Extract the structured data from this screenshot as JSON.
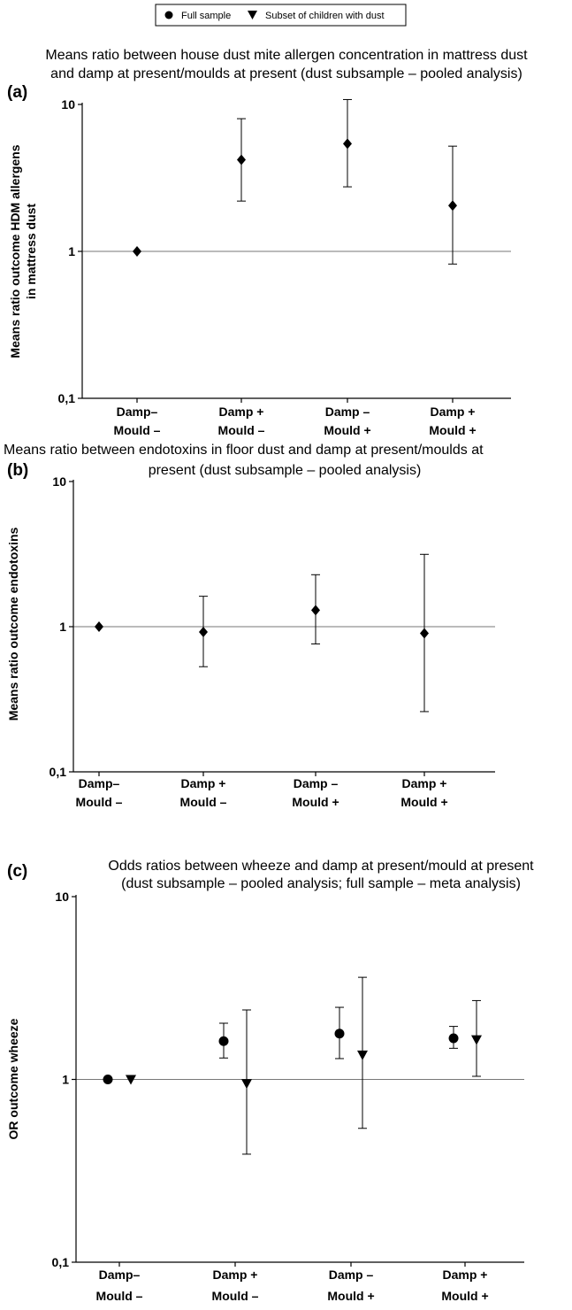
{
  "legend": {
    "items": [
      {
        "label": "Full sample",
        "marker": "circle"
      },
      {
        "label": "Subset of children with dust",
        "marker": "triangle-down"
      }
    ]
  },
  "chart_data": [
    {
      "type": "scatter",
      "panel_label": "(a)",
      "title_lines": [
        "Means ratio between house dust mite allergen concentration in mattress dust",
        "and damp at present/moulds at present (dust subsample – pooled analysis)"
      ],
      "ylabel_lines": [
        "Means ratio outcome HDM allergens",
        "in mattress dust"
      ],
      "y_scale": "log",
      "ylim": [
        0.1,
        10
      ],
      "yticks": [
        {
          "value": 0.1,
          "label": "0,1"
        },
        {
          "value": 1,
          "label": "1"
        },
        {
          "value": 10,
          "label": "10"
        }
      ],
      "reference_line": 1,
      "categories": [
        [
          "Damp–",
          "Mould –"
        ],
        [
          "Damp +",
          "Mould –"
        ],
        [
          "Damp –",
          "Mould +"
        ],
        [
          "Damp +",
          "Mould +"
        ]
      ],
      "series": [
        {
          "marker": "diamond",
          "values": [
            1.0,
            4.2,
            5.4,
            2.05
          ],
          "lower": [
            null,
            2.2,
            2.75,
            0.82
          ],
          "upper": [
            null,
            8.0,
            10.8,
            5.2
          ]
        }
      ]
    },
    {
      "type": "scatter",
      "panel_label": "(b)",
      "title_lines": [
        "Means ratio between endotoxins in floor dust and damp at present/moulds at",
        "present (dust subsample – pooled analysis)"
      ],
      "ylabel_lines": [
        "Means ratio outcome endotoxins"
      ],
      "y_scale": "log",
      "ylim": [
        0.1,
        10
      ],
      "yticks": [
        {
          "value": 0.1,
          "label": "0,1"
        },
        {
          "value": 1,
          "label": "1"
        },
        {
          "value": 10,
          "label": "10"
        }
      ],
      "reference_line": 1,
      "categories": [
        [
          "Damp–",
          "Mould –"
        ],
        [
          "Damp +",
          "Mould –"
        ],
        [
          "Damp –",
          "Mould +"
        ],
        [
          "Damp +",
          "Mould +"
        ]
      ],
      "series": [
        {
          "marker": "diamond",
          "values": [
            1.0,
            0.92,
            1.3,
            0.9
          ],
          "lower": [
            null,
            0.53,
            0.76,
            0.26
          ],
          "upper": [
            null,
            1.62,
            2.28,
            3.15
          ]
        }
      ]
    },
    {
      "type": "scatter",
      "panel_label": "(c)",
      "title_lines": [
        "Odds ratios between wheeze and damp at present/mould at present",
        "(dust subsample – pooled analysis; full sample – meta analysis)"
      ],
      "ylabel_lines": [
        "OR outcome wheeze"
      ],
      "y_scale": "log",
      "ylim": [
        0.1,
        10
      ],
      "yticks": [
        {
          "value": 0.1,
          "label": "0,1"
        },
        {
          "value": 1,
          "label": "1"
        },
        {
          "value": 10,
          "label": "10"
        }
      ],
      "reference_line": 1,
      "categories": [
        [
          "Damp–",
          "Mould –"
        ],
        [
          "Damp +",
          "Mould –"
        ],
        [
          "Damp –",
          "Mould +"
        ],
        [
          "Damp +",
          "Mould +"
        ]
      ],
      "series": [
        {
          "name": "Full sample",
          "marker": "circle",
          "values": [
            1.0,
            1.62,
            1.78,
            1.68
          ],
          "lower": [
            null,
            1.31,
            1.3,
            1.48
          ],
          "upper": [
            null,
            2.03,
            2.48,
            1.95
          ]
        },
        {
          "name": "Subset of children with dust",
          "marker": "triangle-down",
          "values": [
            1.0,
            0.95,
            1.36,
            1.65
          ],
          "lower": [
            null,
            0.39,
            0.54,
            1.04
          ],
          "upper": [
            null,
            2.4,
            3.62,
            2.7
          ]
        }
      ]
    }
  ]
}
